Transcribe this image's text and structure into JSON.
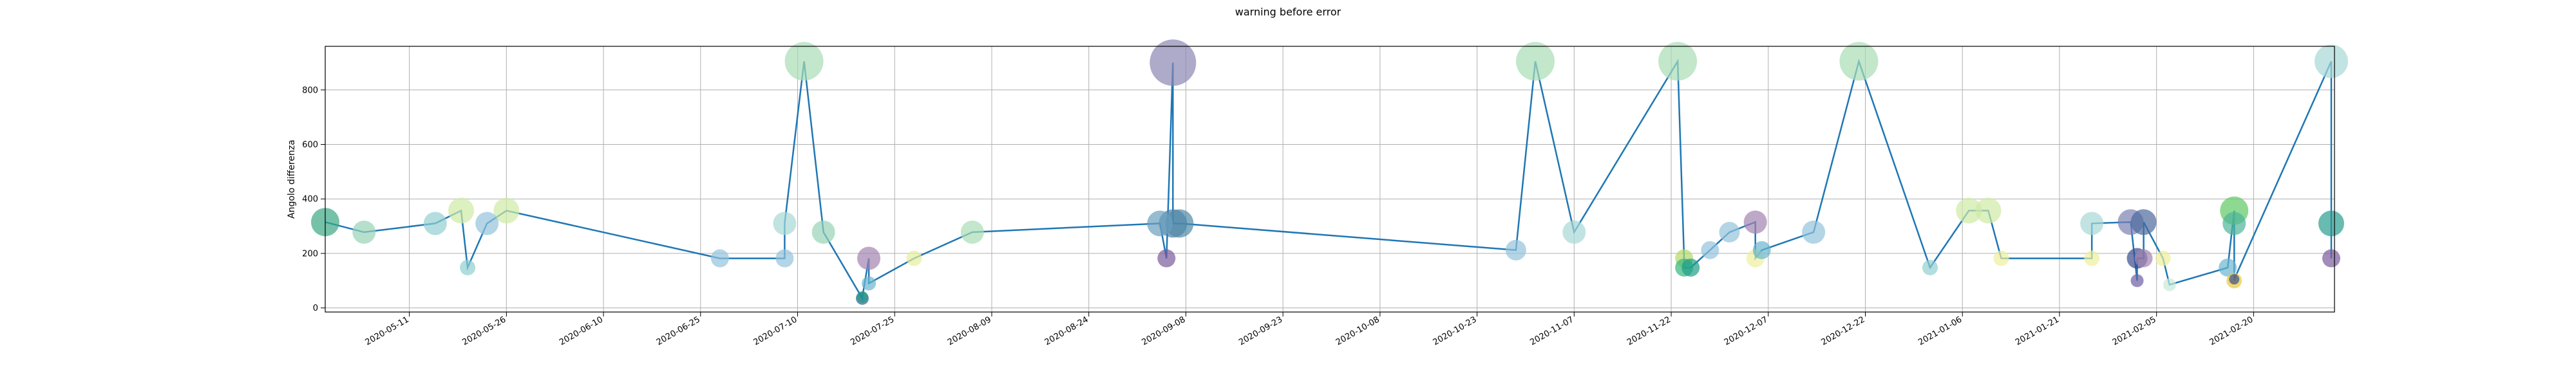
{
  "chart_data": {
    "type": "scatter",
    "title": "warning before error",
    "xlabel": "",
    "ylabel": "Angolo differenza",
    "xlim": [
      "2020-04-28",
      "2021-03-04"
    ],
    "ylim": [
      -15,
      960
    ],
    "grid": true,
    "line_color": "#1f77b4",
    "marker_colormap": "viridis",
    "yticks": [
      0,
      200,
      400,
      600,
      800
    ],
    "xticks": [
      {
        "date": "2020-05-11",
        "label": "2020-05-11"
      },
      {
        "date": "2020-05-26",
        "label": "2020-05-26"
      },
      {
        "date": "2020-06-10",
        "label": "2020-06-10"
      },
      {
        "date": "2020-06-25",
        "label": "2020-06-25"
      },
      {
        "date": "2020-07-10",
        "label": "2020-07-10"
      },
      {
        "date": "2020-07-25",
        "label": "2020-07-25"
      },
      {
        "date": "2020-08-09",
        "label": "2020-08-09"
      },
      {
        "date": "2020-08-24",
        "label": "2020-08-24"
      },
      {
        "date": "2020-09-08",
        "label": "2020-09-08"
      },
      {
        "date": "2020-09-23",
        "label": "2020-09-23"
      },
      {
        "date": "2020-10-08",
        "label": "2020-10-08"
      },
      {
        "date": "2020-10-23",
        "label": "2020-10-23"
      },
      {
        "date": "2020-11-07",
        "label": "2020-11-07"
      },
      {
        "date": "2020-11-22",
        "label": "2020-11-22"
      },
      {
        "date": "2020-12-07",
        "label": "2020-12-07"
      },
      {
        "date": "2020-12-22",
        "label": "2020-12-22"
      },
      {
        "date": "2021-01-06",
        "label": "2021-01-06"
      },
      {
        "date": "2021-01-21",
        "label": "2021-01-21"
      },
      {
        "date": "2021-02-05",
        "label": "2021-02-05"
      },
      {
        "date": "2021-02-20",
        "label": "2021-02-20"
      }
    ],
    "points": [
      {
        "x": "2020-04-28",
        "y": 315,
        "size": 22,
        "color": "#3aa883"
      },
      {
        "x": "2020-05-04",
        "y": 278,
        "size": 18,
        "color": "#97d3b6"
      },
      {
        "x": "2020-05-15",
        "y": 310,
        "size": 18,
        "color": "#93cfd0"
      },
      {
        "x": "2020-05-19",
        "y": 357,
        "size": 20,
        "color": "#cfeaa5"
      },
      {
        "x": "2020-05-20",
        "y": 148,
        "size": 12,
        "color": "#8fcfd0"
      },
      {
        "x": "2020-05-23",
        "y": 310,
        "size": 18,
        "color": "#93c3dc"
      },
      {
        "x": "2020-05-26",
        "y": 357,
        "size": 20,
        "color": "#cfeaa5"
      },
      {
        "x": "2020-06-28",
        "y": 182,
        "size": 14,
        "color": "#93c3dc"
      },
      {
        "x": "2020-07-08",
        "y": 182,
        "size": 14,
        "color": "#93c3dc"
      },
      {
        "x": "2020-07-08",
        "y": 310,
        "size": 18,
        "color": "#a6d9d5"
      },
      {
        "x": "2020-07-11",
        "y": 905,
        "size": 30,
        "color": "#a8ddb5"
      },
      {
        "x": "2020-07-14",
        "y": 278,
        "size": 18,
        "color": "#97d3b6"
      },
      {
        "x": "2020-07-20",
        "y": 35,
        "size": 10,
        "color": "#355f8d"
      },
      {
        "x": "2020-07-20",
        "y": 40,
        "size": 9,
        "color": "#1f9e89"
      },
      {
        "x": "2020-07-21",
        "y": 182,
        "size": 18,
        "color": "#a283b0"
      },
      {
        "x": "2020-07-21",
        "y": 90,
        "size": 11,
        "color": "#6ab7ce"
      },
      {
        "x": "2020-07-28",
        "y": 182,
        "size": 12,
        "color": "#e6ee9c"
      },
      {
        "x": "2020-08-06",
        "y": 278,
        "size": 18,
        "color": "#a8ddb5"
      },
      {
        "x": "2020-09-04",
        "y": 310,
        "size": 20,
        "color": "#6a9fbe"
      },
      {
        "x": "2020-09-05",
        "y": 182,
        "size": 14,
        "color": "#7a5b9c"
      },
      {
        "x": "2020-09-06",
        "y": 900,
        "size": 36,
        "color": "#8a86b3"
      },
      {
        "x": "2020-09-06",
        "y": 310,
        "size": 22,
        "color": "#4f7fa8"
      },
      {
        "x": "2020-09-07",
        "y": 310,
        "size": 22,
        "color": "#4f8aa6"
      },
      {
        "x": "2020-10-29",
        "y": 212,
        "size": 16,
        "color": "#93c3dc"
      },
      {
        "x": "2020-11-01",
        "y": 905,
        "size": 30,
        "color": "#a8ddb5"
      },
      {
        "x": "2020-11-07",
        "y": 278,
        "size": 18,
        "color": "#a6d9d5"
      },
      {
        "x": "2020-11-23",
        "y": 905,
        "size": 30,
        "color": "#a8ddb5"
      },
      {
        "x": "2020-11-24",
        "y": 182,
        "size": 14,
        "color": "#b3d96a"
      },
      {
        "x": "2020-11-24",
        "y": 148,
        "size": 14,
        "color": "#35b779"
      },
      {
        "x": "2020-11-25",
        "y": 148,
        "size": 14,
        "color": "#1f9e89"
      },
      {
        "x": "2020-11-28",
        "y": 212,
        "size": 14,
        "color": "#93c3dc"
      },
      {
        "x": "2020-12-01",
        "y": 278,
        "size": 16,
        "color": "#93c3dc"
      },
      {
        "x": "2020-12-05",
        "y": 315,
        "size": 18,
        "color": "#a283b0"
      },
      {
        "x": "2020-12-05",
        "y": 182,
        "size": 14,
        "color": "#eef09c"
      },
      {
        "x": "2020-12-06",
        "y": 212,
        "size": 14,
        "color": "#6ab7ce"
      },
      {
        "x": "2020-12-14",
        "y": 278,
        "size": 18,
        "color": "#93c3dc"
      },
      {
        "x": "2020-12-21",
        "y": 905,
        "size": 30,
        "color": "#a8ddb5"
      },
      {
        "x": "2021-01-01",
        "y": 148,
        "size": 12,
        "color": "#93cfd0"
      },
      {
        "x": "2021-01-07",
        "y": 357,
        "size": 20,
        "color": "#cfeaa5"
      },
      {
        "x": "2021-01-10",
        "y": 357,
        "size": 20,
        "color": "#cfeaa5"
      },
      {
        "x": "2021-01-12",
        "y": 182,
        "size": 12,
        "color": "#eef09c"
      },
      {
        "x": "2021-01-26",
        "y": 182,
        "size": 12,
        "color": "#eef09c"
      },
      {
        "x": "2021-01-26",
        "y": 310,
        "size": 18,
        "color": "#a6d9d5"
      },
      {
        "x": "2021-02-01",
        "y": 315,
        "size": 20,
        "color": "#7a82b3"
      },
      {
        "x": "2021-02-02",
        "y": 100,
        "size": 10,
        "color": "#6d5fa3"
      },
      {
        "x": "2021-02-02",
        "y": 182,
        "size": 16,
        "color": "#3b4d8e"
      },
      {
        "x": "2021-02-03",
        "y": 182,
        "size": 14,
        "color": "#a283b0"
      },
      {
        "x": "2021-02-03",
        "y": 315,
        "size": 20,
        "color": "#4b6a9c"
      },
      {
        "x": "2021-02-06",
        "y": 182,
        "size": 12,
        "color": "#eef09c"
      },
      {
        "x": "2021-02-07",
        "y": 85,
        "size": 10,
        "color": "#c7e9d8"
      },
      {
        "x": "2021-02-16",
        "y": 148,
        "size": 14,
        "color": "#6ab7ce"
      },
      {
        "x": "2021-02-17",
        "y": 357,
        "size": 22,
        "color": "#5ec962"
      },
      {
        "x": "2021-02-17",
        "y": 310,
        "size": 18,
        "color": "#4fb39a"
      },
      {
        "x": "2021-02-17",
        "y": 100,
        "size": 12,
        "color": "#e8c93b"
      },
      {
        "x": "2021-02-17",
        "y": 105,
        "size": 8,
        "color": "#3b4d8e"
      },
      {
        "x": "2021-03-04",
        "y": 905,
        "size": 26,
        "color": "#a6d9d5"
      },
      {
        "x": "2021-03-04",
        "y": 310,
        "size": 20,
        "color": "#2a9d8f"
      },
      {
        "x": "2021-03-04",
        "y": 182,
        "size": 14,
        "color": "#7a5b9c"
      }
    ]
  }
}
